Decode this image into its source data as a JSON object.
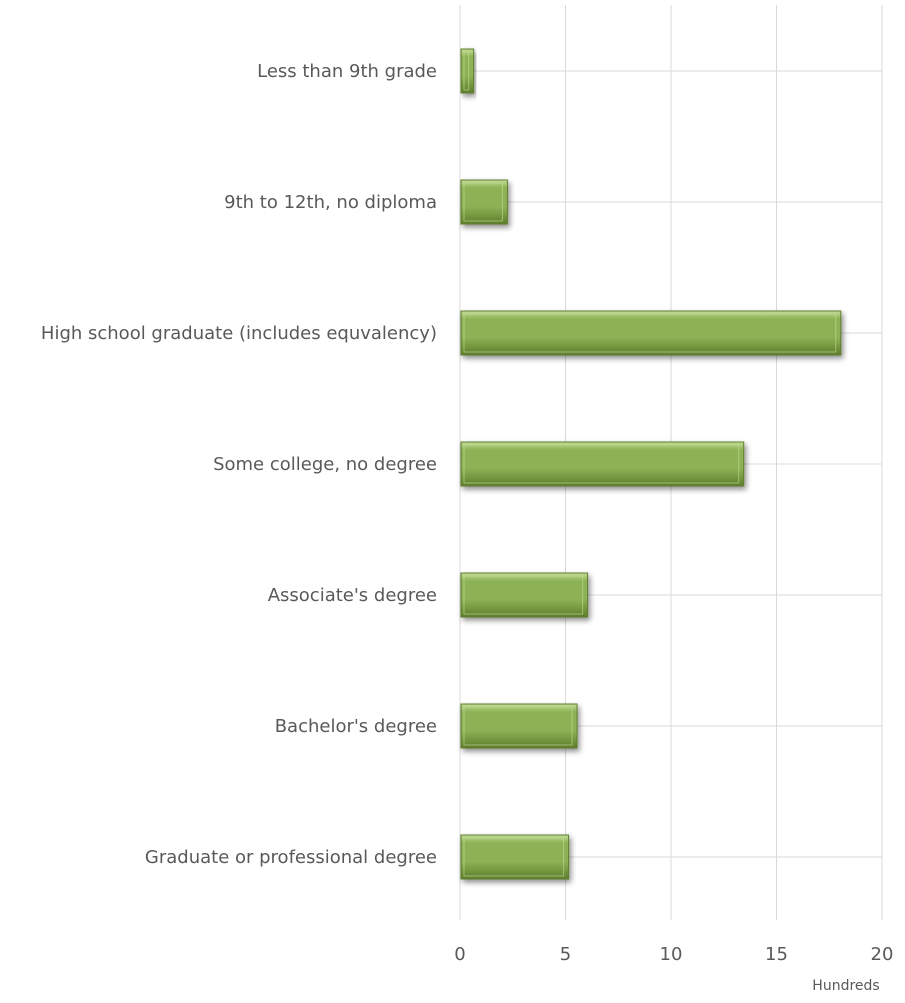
{
  "chart_data": {
    "type": "bar",
    "orientation": "horizontal",
    "categories": [
      "Less than 9th grade",
      "9th to 12th, no diploma",
      "High school graduate (includes equvalency)",
      "Some college, no degree",
      "Associate's degree",
      "Bachelor's degree",
      "Graduate or professional degree"
    ],
    "values": [
      0.6,
      2.2,
      18.0,
      13.4,
      6.0,
      5.5,
      5.1
    ],
    "x_ticks": [
      "0",
      "5",
      "10",
      "15",
      "20"
    ],
    "xlim": [
      0,
      20
    ],
    "x_unit_label": "Hundreds",
    "grid": true,
    "bar_color": "#8db255",
    "bar_color_dark": "#5e7e2c",
    "bar_color_light": "#c4dc98"
  }
}
